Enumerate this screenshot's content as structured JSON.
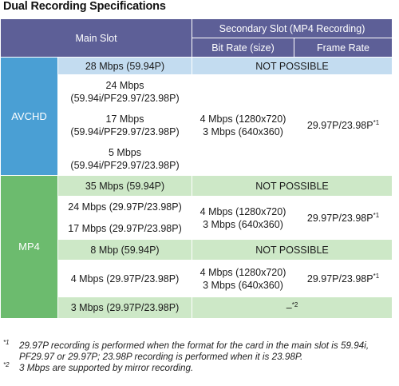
{
  "title": "Dual Recording Specifications",
  "header": {
    "main_slot": "Main Slot",
    "secondary_slot": "Secondary Slot (MP4 Recording)",
    "bit_rate": "Bit Rate (size)",
    "frame_rate": "Frame Rate"
  },
  "avchd": {
    "label": "AVCHD",
    "row1_main": "28 Mbps (59.94P)",
    "row1_secondary": "NOT POSSIBLE",
    "row2_main_line1": "24 Mbps",
    "row2_main_line2": "(59.94i/PF29.97/23.98P)",
    "row3_main_line1": "17 Mbps",
    "row3_main_line2": "(59.94i/PF29.97/23.98P)",
    "row4_main_line1": "5 Mbps",
    "row4_main_line2": "(59.94i/PF29.97/23.98P)",
    "bitrate_line1": "4 Mbps (1280x720)",
    "bitrate_line2": "3 Mbps (640x360)",
    "frame_rate": "29.97P/23.98P",
    "frame_rate_note": "*1"
  },
  "mp4": {
    "label": "MP4",
    "row1_main": "35 Mbps (59.94P)",
    "row1_secondary": "NOT POSSIBLE",
    "row2_main": "24 Mbps (29.97P/23.98P)",
    "row3_main": "17 Mbps (29.97P/23.98P)",
    "group1_bitrate_line1": "4 Mbps (1280x720)",
    "group1_bitrate_line2": "3 Mbps (640x360)",
    "group1_frame_rate": "29.97P/23.98P",
    "group1_frame_rate_note": "*1",
    "row4_main": "8 Mbp (59.94P)",
    "row4_secondary": "NOT POSSIBLE",
    "row5_main": "4 Mbps (29.97P/23.98P)",
    "group2_bitrate_line1": "4 Mbps (1280x720)",
    "group2_bitrate_line2": "3 Mbps (640x360)",
    "group2_frame_rate": "29.97P/23.98P",
    "group2_frame_rate_note": "*1",
    "row6_main": "3 Mbps (29.97P/23.98P)",
    "row6_secondary": "–",
    "row6_secondary_note": "*2"
  },
  "footnotes": [
    {
      "mark": "*1",
      "text": "29.97P recording is performed when the format for the card in the main slot is 59.94i, PF29.97 or 29.97P; 23.98P recording is performed when it is 23.98P."
    },
    {
      "mark": "*2",
      "text": "3 Mbps are supported by mirror recording."
    }
  ]
}
